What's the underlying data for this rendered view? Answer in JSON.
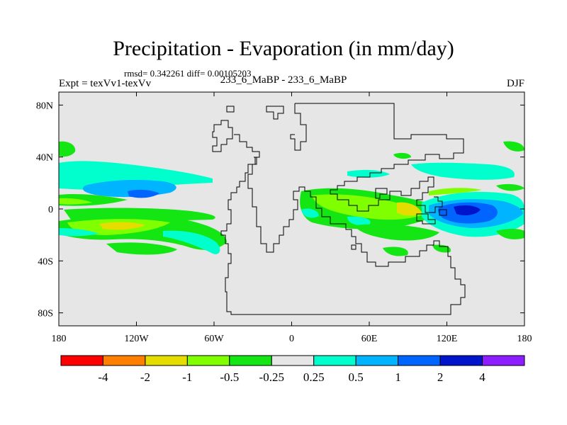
{
  "chart_data": {
    "type": "heatmap",
    "title": "Precipitation - Evaporation (in mm/day)",
    "stats_text": "rmsd= 0.342261 diff= 0.00105203",
    "left_string": "Expt = texVv1-texVv",
    "center_string": "233_6_MaBP - 233_6_MaBP",
    "right_string": "DJF",
    "x_ticks": [
      "180",
      "120W",
      "60W",
      "0",
      "60E",
      "120E",
      "180"
    ],
    "y_ticks": [
      "80N",
      "40N",
      "0",
      "40S",
      "80S"
    ],
    "xlim": [
      -180,
      180
    ],
    "ylim": [
      -90,
      90
    ],
    "colorbar": {
      "colors": [
        "#ff0000",
        "#ff8000",
        "#e6dc00",
        "#80ff00",
        "#14e614",
        "#e6e6e6",
        "#00ffcc",
        "#00b4ff",
        "#0064ff",
        "#0014cc",
        "#8c1eff"
      ],
      "labels": [
        "-4",
        "-2",
        "-1",
        "-0.5",
        "-0.25",
        "0.25",
        "0.5",
        "1",
        "2",
        "4"
      ]
    },
    "background_color": "#e6e6e6"
  }
}
